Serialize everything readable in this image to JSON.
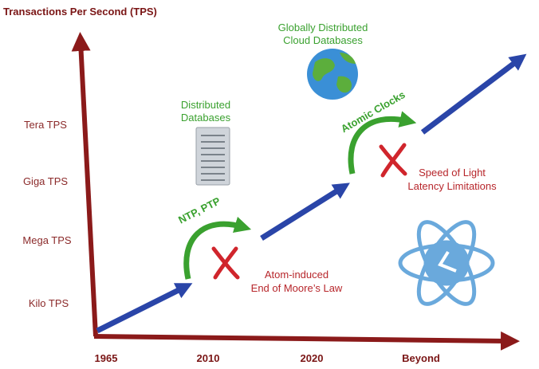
{
  "y_axis": {
    "title": "Transactions Per Second (TPS)",
    "labels": [
      "Tera TPS",
      "Giga TPS",
      "Mega TPS",
      "Kilo TPS"
    ]
  },
  "x_axis": {
    "labels": [
      "1965",
      "2010",
      "2020",
      "Beyond"
    ]
  },
  "annotations": {
    "distributed_databases": [
      "Distributed",
      "Databases"
    ],
    "cloud_databases": [
      "Globally Distributed",
      "Cloud Databases"
    ],
    "ntp_ptp": "NTP, PTP",
    "atomic_clocks": "Atomic Clocks",
    "moores_law": [
      "Atom-induced",
      "End of Moore’s Law"
    ],
    "speed_of_light": [
      "Speed of Light",
      "Latency Limitations"
    ]
  }
}
